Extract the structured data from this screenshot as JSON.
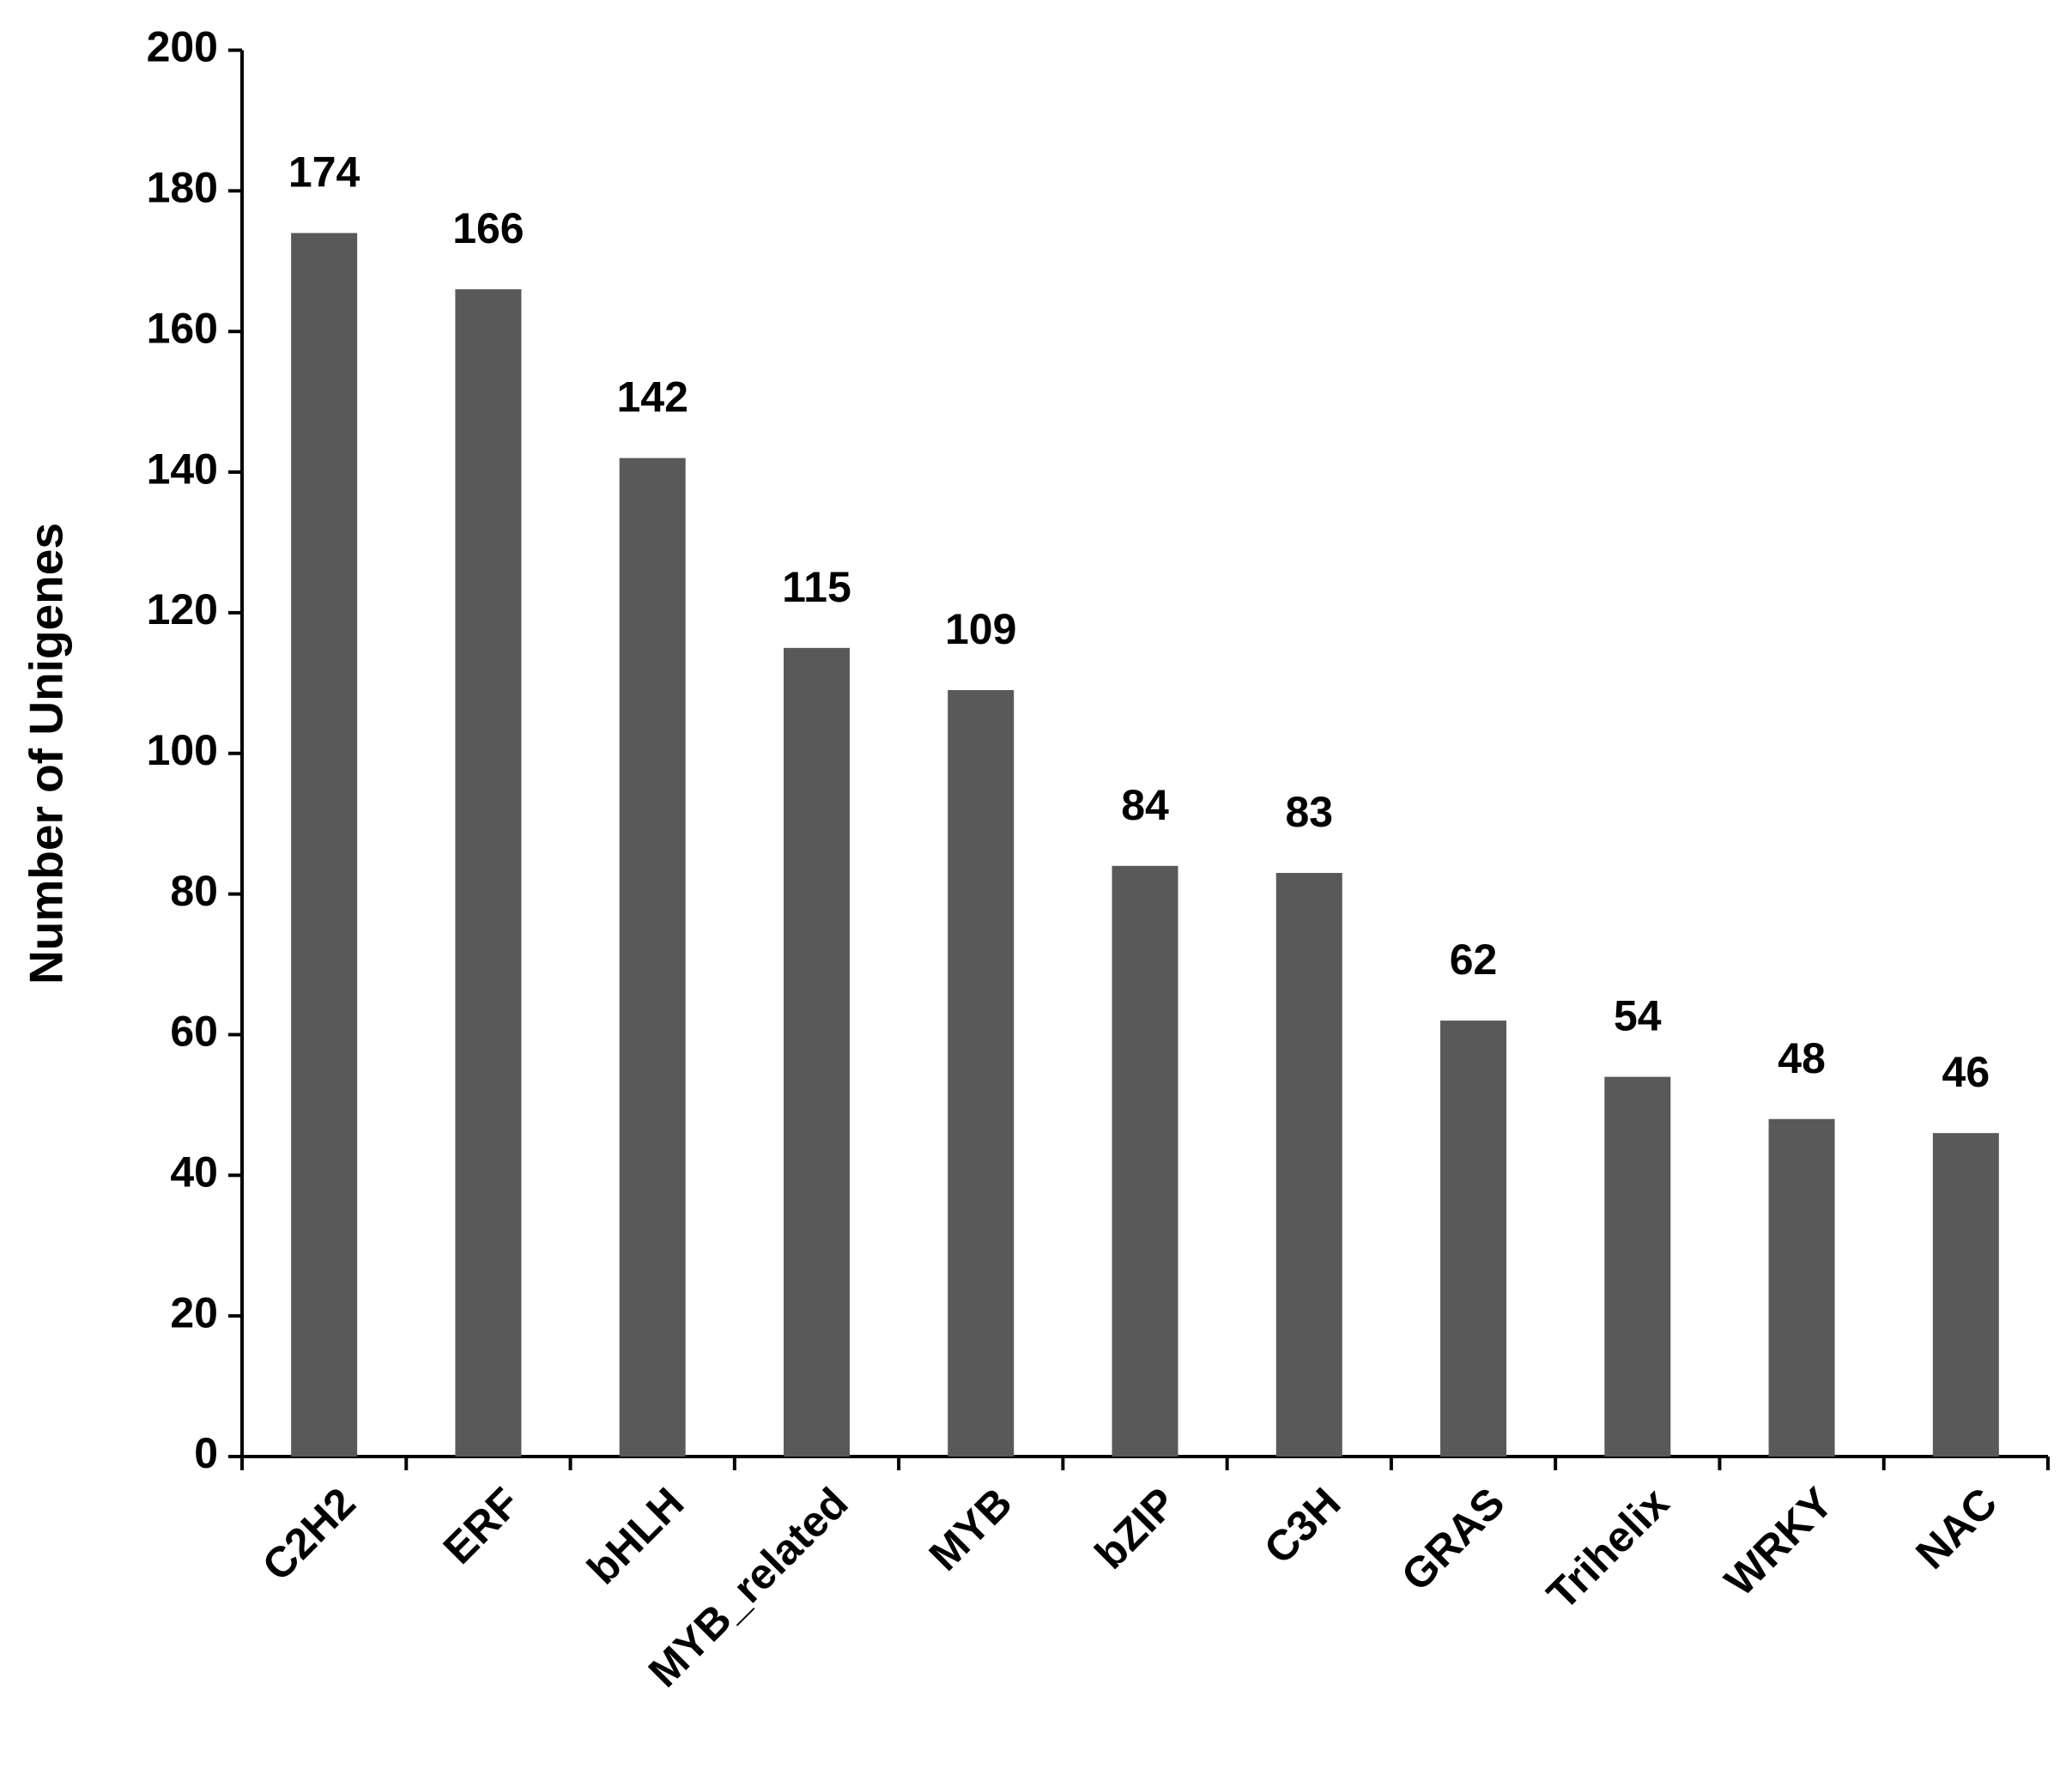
{
  "chart_data": {
    "type": "bar",
    "y_label": "Number of Unigenes",
    "categories": [
      "C2H2",
      "ERF",
      "bHLH",
      "MYB_related",
      "MYB",
      "bZIP",
      "C3H",
      "GRAS",
      "Trihelix",
      "WRKY",
      "NAC"
    ],
    "values": [
      174,
      166,
      142,
      115,
      109,
      84,
      83,
      62,
      54,
      48,
      46
    ],
    "color": "#595959",
    "ylim": [
      0,
      200
    ],
    "yticks": [
      0,
      20,
      40,
      60,
      80,
      100,
      120,
      140,
      160,
      180,
      200
    ],
    "grid": false
  }
}
